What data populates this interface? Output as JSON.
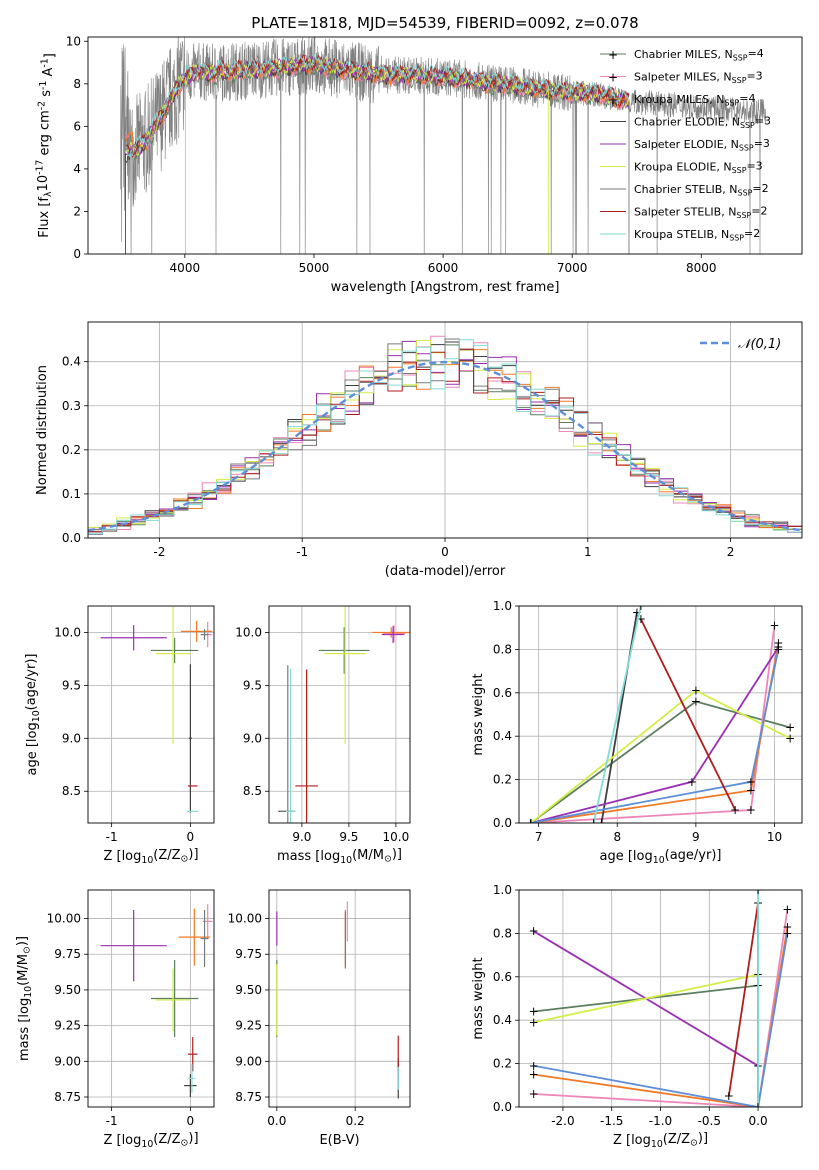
{
  "title": "PLATE=1818, MJD=54539, FIBERID=0092, z=0.078",
  "colors": {
    "Chabrier MILES": "#5a7f5e",
    "Salpeter MILES": "#ef86b9",
    "Kroupa MILES": "#f07a26",
    "Chabrier ELODIE": "#3f3f3f",
    "Salpeter ELODIE": "#9a2fb4",
    "Kroupa ELODIE": "#d4ee48",
    "Chabrier STELIB": "#7a7a7a",
    "Salpeter STELIB": "#b01c1c",
    "Kroupa STELIB": "#84dad6",
    "blue": "#5f8fd8",
    "data": "#808080"
  },
  "chart_data": [
    {
      "id": "spectrum",
      "type": "line",
      "xlabel": "wavelength [Angstrom, rest frame]",
      "ylabel": "Flux [f$_\\lambda$10$^{-17}$ erg cm$^{-2}$ s$^{-1}$ A$^{-1}$]",
      "xlim": [
        3250,
        8780
      ],
      "ylim": [
        0,
        10.2
      ],
      "xticks": [
        4000,
        5000,
        6000,
        7000,
        8000
      ],
      "yticks": [
        0,
        2,
        4,
        6,
        8,
        10
      ],
      "legend_position": "top-right",
      "legend": [
        {
          "name": "Chabrier MILES, N$_{SSP}$=4",
          "color": "#5a7f5e",
          "marker": "+"
        },
        {
          "name": "Salpeter MILES, N$_{SSP}$=3",
          "color": "#ef86b9",
          "marker": "+"
        },
        {
          "name": "Kroupa MILES, N$_{SSP}$=4",
          "color": "#f07a26",
          "marker": "+"
        },
        {
          "name": "Chabrier ELODIE, N$_{SSP}$=3",
          "color": "#3f3f3f",
          "marker": ""
        },
        {
          "name": "Salpeter ELODIE, N$_{SSP}$=3",
          "color": "#9a2fb4",
          "marker": ""
        },
        {
          "name": "Kroupa ELODIE, N$_{SSP}$=3",
          "color": "#d4ee48",
          "marker": ""
        },
        {
          "name": "Chabrier STELIB, N$_{SSP}$=2",
          "color": "#7a7a7a",
          "marker": ""
        },
        {
          "name": "Salpeter STELIB, N$_{SSP}$=2",
          "color": "#b01c1c",
          "marker": ""
        },
        {
          "name": "Kroupa STELIB, N$_{SSP}$=2",
          "color": "#84dad6",
          "marker": ""
        }
      ],
      "continuum": {
        "x": [
          3500,
          3600,
          3700,
          3800,
          3900,
          4000,
          4100,
          4200,
          4400,
          4600,
          4800,
          5000,
          5200,
          5400,
          5600,
          5800,
          6000,
          6200,
          6400,
          6600,
          6800,
          7000,
          7200,
          7400,
          7600,
          7800,
          8000,
          8200,
          8400
        ],
        "y": [
          4.7,
          4.8,
          5.3,
          6.3,
          7.4,
          8.3,
          8.6,
          8.5,
          8.6,
          8.7,
          8.8,
          8.9,
          8.7,
          8.5,
          8.4,
          8.4,
          8.3,
          8.2,
          8.0,
          7.9,
          7.7,
          7.6,
          7.5,
          7.2,
          7.1,
          7.0,
          6.9,
          6.8,
          6.7
        ]
      },
      "data_range": [
        3500,
        8500
      ],
      "model_range": [
        3540,
        7440
      ]
    },
    {
      "id": "residuals",
      "type": "histogram",
      "xlabel": "(data-model)/error",
      "ylabel": "Normed distribution",
      "xlim": [
        -2.5,
        2.5
      ],
      "ylim": [
        0,
        0.49
      ],
      "xticks": [
        -2,
        -1,
        0,
        1,
        2
      ],
      "yticks": [
        0,
        0.1,
        0.2,
        0.3,
        0.4
      ],
      "bin_width": 0.1,
      "curve_label": "$\\mathcal{N}(0,1)$",
      "legend_position": "top-right"
    },
    {
      "id": "age_Z",
      "type": "scatter",
      "xlabel": "Z [log$_{10}$(Z/Z$_\\odot$)]",
      "ylabel": "age  [log$_{10}$(age/yr)]",
      "xlim": [
        -1.3,
        0.3
      ],
      "ylim": [
        8.2,
        10.25
      ],
      "xticks": [
        -1,
        0
      ],
      "yticks": [
        8.5,
        9.0,
        9.5,
        10.0
      ],
      "points": [
        {
          "m": "Chabrier MILES",
          "x": -0.2,
          "y": 9.83,
          "ex": 0.3,
          "ey": 0.12
        },
        {
          "m": "Salpeter MILES",
          "x": 0.22,
          "y": 9.98,
          "ex": 0.06,
          "ey": 0.12
        },
        {
          "m": "Kroupa MILES",
          "x": 0.08,
          "y": 10.01,
          "ex": 0.2,
          "ey": 0.1
        },
        {
          "m": "Chabrier ELODIE",
          "x": 0.0,
          "y": 9.0,
          "ex": 0.02,
          "ey": 0.7
        },
        {
          "m": "Salpeter ELODIE",
          "x": -0.72,
          "y": 9.95,
          "ex": 0.42,
          "ey": 0.12
        },
        {
          "m": "Kroupa ELODIE",
          "x": -0.22,
          "y": 9.8,
          "ex": 0.22,
          "ey": 0.85
        },
        {
          "m": "Chabrier STELIB",
          "x": 0.18,
          "y": 9.98,
          "ex": 0.05,
          "ey": 0.05
        },
        {
          "m": "Salpeter STELIB",
          "x": 0.03,
          "y": 8.55,
          "ex": 0.06,
          "ey": 0.0
        },
        {
          "m": "Kroupa STELIB",
          "x": 0.03,
          "y": 8.31,
          "ex": 0.07,
          "ey": 0.0
        }
      ]
    },
    {
      "id": "age_mass",
      "type": "scatter",
      "xlabel": "mass [log$_{10}$(M/M$_\\odot$)]",
      "ylabel": "",
      "xlim": [
        8.65,
        10.15
      ],
      "ylim": [
        8.2,
        10.25
      ],
      "xticks": [
        9.0,
        9.5,
        10.0
      ],
      "yticks": [
        8.5,
        9.0,
        9.5,
        10.0
      ],
      "points": [
        {
          "m": "Chabrier MILES",
          "x": 9.45,
          "y": 9.83,
          "ex": 0.27,
          "ey": 0.22
        },
        {
          "m": "Salpeter MILES",
          "x": 9.98,
          "y": 9.99,
          "ex": 0.12,
          "ey": 0.08
        },
        {
          "m": "Kroupa MILES",
          "x": 9.95,
          "y": 10.0,
          "ex": 0.2,
          "ey": 0.05
        },
        {
          "m": "Chabrier ELODIE",
          "x": 8.83,
          "y": 8.31,
          "ex": 0.08,
          "ey": 0.0
        },
        {
          "m": "Salpeter ELODIE",
          "x": 9.97,
          "y": 9.98,
          "ex": 0.12,
          "ey": 0.08
        },
        {
          "m": "Kroupa ELODIE",
          "x": 9.46,
          "y": 9.8,
          "ex": 0.22,
          "ey": 0.85
        },
        {
          "m": "Chabrier STELIB",
          "x": 8.85,
          "y": 8.31,
          "ex": 0.08,
          "ey": 1.38
        },
        {
          "m": "Salpeter STELIB",
          "x": 9.05,
          "y": 8.55,
          "ex": 0.12,
          "ey": 1.1
        },
        {
          "m": "Kroupa STELIB",
          "x": 8.88,
          "y": 8.31,
          "ex": 0.05,
          "ey": 1.35
        }
      ]
    },
    {
      "id": "weight_age",
      "type": "line",
      "xlabel": "age  [log$_{10}$(age/yr)]",
      "ylabel": "mass weight",
      "xlim": [
        6.75,
        10.35
      ],
      "ylim": [
        0,
        1
      ],
      "xticks": [
        7,
        8,
        9,
        10
      ],
      "yticks": [
        0.0,
        0.2,
        0.4,
        0.6,
        0.8,
        1.0
      ],
      "series": [
        {
          "m": "Chabrier MILES",
          "x": [
            6.9,
            9.0,
            10.2
          ],
          "y": [
            0.0,
            0.56,
            0.44
          ]
        },
        {
          "m": "Salpeter MILES",
          "x": [
            6.9,
            9.7,
            10.0
          ],
          "y": [
            0.0,
            0.06,
            0.91
          ]
        },
        {
          "m": "Kroupa MILES",
          "x": [
            6.9,
            9.7,
            10.05
          ],
          "y": [
            0.0,
            0.15,
            0.83
          ]
        },
        {
          "m": "Chabrier ELODIE",
          "x": [
            7.8,
            8.25
          ],
          "y": [
            0.0,
            0.97
          ]
        },
        {
          "m": "Salpeter ELODIE",
          "x": [
            6.9,
            8.95,
            10.05
          ],
          "y": [
            0.0,
            0.19,
            0.81
          ]
        },
        {
          "m": "Kroupa ELODIE",
          "x": [
            6.9,
            9.0,
            10.2
          ],
          "y": [
            0.0,
            0.61,
            0.39
          ]
        },
        {
          "m": "blue",
          "x": [
            6.9,
            9.7,
            10.05
          ],
          "y": [
            0.0,
            0.19,
            0.8
          ]
        },
        {
          "m": "Salpeter STELIB",
          "x": [
            8.3,
            9.5
          ],
          "y": [
            0.94,
            0.06
          ]
        },
        {
          "m": "Kroupa STELIB",
          "x": [
            7.7,
            8.3
          ],
          "y": [
            0.0,
            1.0
          ]
        }
      ]
    },
    {
      "id": "mass_Z",
      "type": "scatter",
      "xlabel": "Z [log$_{10}$(Z/Z$_\\odot$)]",
      "ylabel": "mass [log$_{10}$(M/M$_\\odot$)]",
      "xlim": [
        -1.3,
        0.3
      ],
      "ylim": [
        8.68,
        10.2
      ],
      "xticks": [
        -1,
        0
      ],
      "yticks": [
        8.75,
        9.0,
        9.25,
        9.5,
        9.75,
        10.0
      ],
      "points": [
        {
          "m": "Chabrier MILES",
          "x": -0.2,
          "y": 9.44,
          "ex": 0.3,
          "ey": 0.27
        },
        {
          "m": "Salpeter MILES",
          "x": 0.22,
          "y": 9.98,
          "ex": 0.06,
          "ey": 0.12
        },
        {
          "m": "Kroupa MILES",
          "x": 0.05,
          "y": 9.87,
          "ex": 0.2,
          "ey": 0.2
        },
        {
          "m": "Chabrier ELODIE",
          "x": 0.0,
          "y": 8.83,
          "ex": 0.08,
          "ey": 0.08
        },
        {
          "m": "Salpeter ELODIE",
          "x": -0.72,
          "y": 9.81,
          "ex": 0.42,
          "ey": 0.25
        },
        {
          "m": "Kroupa ELODIE",
          "x": -0.22,
          "y": 9.43,
          "ex": 0.22,
          "ey": 0.22
        },
        {
          "m": "Chabrier STELIB",
          "x": 0.18,
          "y": 9.86,
          "ex": 0.05,
          "ey": 0.2
        },
        {
          "m": "Salpeter STELIB",
          "x": 0.03,
          "y": 9.05,
          "ex": 0.06,
          "ey": 0.12
        },
        {
          "m": "Kroupa STELIB",
          "x": 0.02,
          "y": 8.88,
          "ex": 0.04,
          "ey": 0.1
        }
      ]
    },
    {
      "id": "mass_ebv",
      "type": "scatter",
      "xlabel": "E(B-V)",
      "ylabel": "",
      "xlim": [
        -0.02,
        0.34
      ],
      "ylim": [
        8.68,
        10.2
      ],
      "xticks": [
        0.0,
        0.2
      ],
      "yticks": [
        8.75,
        9.0,
        9.25,
        9.5,
        9.75,
        10.0
      ],
      "points": [
        {
          "m": "Chabrier MILES",
          "x": 0.0,
          "y": 9.44,
          "ex": 0.0,
          "ey": 0.27
        },
        {
          "m": "Salpeter MILES",
          "x": 0.18,
          "y": 9.98,
          "ex": 0.0,
          "ey": 0.14
        },
        {
          "m": "Kroupa MILES",
          "x": 0.175,
          "y": 9.86,
          "ex": 0.0,
          "ey": 0.2
        },
        {
          "m": "Chabrier ELODIE",
          "x": 0.31,
          "y": 8.88,
          "ex": 0.0,
          "ey": 0.14
        },
        {
          "m": "Salpeter ELODIE",
          "x": 0.0,
          "y": 9.93,
          "ex": 0.0,
          "ey": 0.12
        },
        {
          "m": "Kroupa ELODIE",
          "x": 0.0,
          "y": 9.43,
          "ex": 0.0,
          "ey": 0.25
        },
        {
          "m": "Chabrier STELIB",
          "x": 0.175,
          "y": 9.85,
          "ex": 0.0,
          "ey": 0.2
        },
        {
          "m": "Salpeter STELIB",
          "x": 0.31,
          "y": 9.05,
          "ex": 0.0,
          "ey": 0.13
        },
        {
          "m": "Kroupa STELIB",
          "x": 0.31,
          "y": 8.88,
          "ex": 0.0,
          "ey": 0.08
        }
      ]
    },
    {
      "id": "weight_Z",
      "type": "line",
      "xlabel": "Z [log$_{10}$(Z/Z$_\\odot$)]",
      "ylabel": "mass weight",
      "xlim": [
        -2.45,
        0.45
      ],
      "ylim": [
        0,
        1
      ],
      "xticks": [
        -2.0,
        -1.5,
        -1.0,
        -0.5,
        0.0
      ],
      "yticks": [
        0.0,
        0.2,
        0.4,
        0.6,
        0.8,
        1.0
      ],
      "series": [
        {
          "m": "Chabrier MILES",
          "x": [
            -2.3,
            0.0
          ],
          "y": [
            0.44,
            0.56
          ]
        },
        {
          "m": "Salpeter MILES",
          "x": [
            -2.3,
            0.0,
            0.3
          ],
          "y": [
            0.06,
            0.0,
            0.91
          ]
        },
        {
          "m": "Kroupa MILES",
          "x": [
            -2.3,
            0.0,
            0.3
          ],
          "y": [
            0.15,
            0.0,
            0.83
          ]
        },
        {
          "m": "Chabrier ELODIE",
          "x": [
            0.0,
            0.0
          ],
          "y": [
            0.0,
            0.94
          ]
        },
        {
          "m": "Salpeter ELODIE",
          "x": [
            -2.3,
            0.0
          ],
          "y": [
            0.81,
            0.19
          ]
        },
        {
          "m": "Kroupa ELODIE",
          "x": [
            -2.3,
            0.0
          ],
          "y": [
            0.39,
            0.61
          ]
        },
        {
          "m": "blue",
          "x": [
            -2.3,
            0.0,
            0.3
          ],
          "y": [
            0.19,
            0.0,
            0.8
          ]
        },
        {
          "m": "Salpeter STELIB",
          "x": [
            -0.3,
            0.0
          ],
          "y": [
            0.05,
            0.94
          ]
        },
        {
          "m": "Kroupa STELIB",
          "x": [
            0.0,
            0.0
          ],
          "y": [
            0.0,
            1.0
          ]
        }
      ]
    }
  ]
}
